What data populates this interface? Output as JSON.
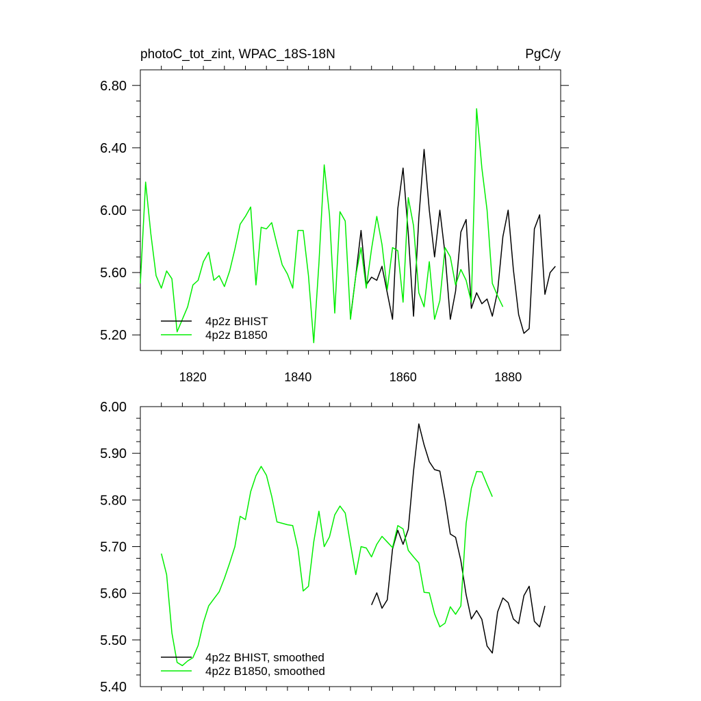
{
  "chart_data": [
    {
      "type": "line",
      "title_left": "photoC_tot_zint, WPAC_18S-18N",
      "title_right": "PgC/y",
      "xlim": [
        1810,
        1890
      ],
      "ylim": [
        5.1,
        6.9
      ],
      "x_ticks": [
        "1820",
        "1840",
        "1860",
        "1880"
      ],
      "y_ticks": [
        "5.20",
        "5.60",
        "6.00",
        "6.40",
        "6.80"
      ],
      "legend": "bottom-left",
      "series": [
        {
          "name": "4p2z BHIST",
          "color": "#000000",
          "x_start": 1850,
          "values": [
            5.31,
            5.58,
            5.87,
            5.52,
            5.57,
            5.55,
            5.64,
            5.47,
            5.3,
            6.01,
            6.27,
            5.85,
            5.32,
            5.95,
            6.39,
            6.0,
            5.7,
            6.0,
            5.72,
            5.3,
            5.48,
            5.86,
            5.94,
            5.37,
            5.47,
            5.4,
            5.43,
            5.32,
            5.48,
            5.83,
            6.0,
            5.62,
            5.33,
            5.21,
            5.24,
            5.88,
            5.97,
            5.46,
            5.6,
            5.64
          ]
        },
        {
          "name": "4p2z B1850",
          "color": "#00ee00",
          "x_start": 1810,
          "values": [
            5.53,
            6.18,
            5.85,
            5.58,
            5.5,
            5.61,
            5.56,
            5.22,
            5.3,
            5.38,
            5.52,
            5.55,
            5.67,
            5.73,
            5.55,
            5.58,
            5.51,
            5.61,
            5.75,
            5.91,
            5.96,
            6.02,
            5.52,
            5.89,
            5.88,
            5.92,
            5.78,
            5.65,
            5.59,
            5.5,
            5.87,
            5.87,
            5.58,
            5.15,
            5.66,
            6.29,
            5.97,
            5.34,
            5.99,
            5.93,
            5.3,
            5.58,
            5.76,
            5.5,
            5.75,
            5.96,
            5.78,
            5.49,
            5.76,
            5.74,
            5.41,
            6.08,
            5.9,
            5.47,
            5.38,
            5.67,
            5.3,
            5.42,
            5.76,
            5.7,
            5.52,
            5.62,
            5.55,
            5.41,
            6.65,
            6.27,
            6.0,
            5.53,
            5.45,
            5.38
          ]
        }
      ]
    },
    {
      "type": "line",
      "xlim": [
        1810,
        1890
      ],
      "ylim": [
        5.4,
        6.0
      ],
      "y_ticks": [
        "5.40",
        "5.50",
        "5.60",
        "5.70",
        "5.80",
        "5.90",
        "6.00"
      ],
      "legend": "bottom-left",
      "series": [
        {
          "name": "4p2z BHIST, smoothed",
          "color": "#000000",
          "x_start": 1854,
          "values": [
            5.575,
            5.601,
            5.568,
            5.586,
            5.695,
            5.735,
            5.705,
            5.737,
            5.862,
            5.963,
            5.918,
            5.882,
            5.865,
            5.862,
            5.8,
            5.727,
            5.72,
            5.67,
            5.597,
            5.545,
            5.563,
            5.544,
            5.487,
            5.472,
            5.56,
            5.59,
            5.58,
            5.545,
            5.535,
            5.595,
            5.615,
            5.54,
            5.528,
            5.573
          ]
        },
        {
          "name": "4p2z B1850, smoothed",
          "color": "#00ee00",
          "x_start": 1814,
          "values": [
            5.685,
            5.64,
            5.515,
            5.452,
            5.445,
            5.455,
            5.462,
            5.488,
            5.537,
            5.573,
            5.588,
            5.603,
            5.632,
            5.665,
            5.7,
            5.765,
            5.758,
            5.818,
            5.852,
            5.872,
            5.853,
            5.808,
            5.753,
            5.75,
            5.747,
            5.745,
            5.695,
            5.605,
            5.615,
            5.71,
            5.776,
            5.7,
            5.721,
            5.768,
            5.787,
            5.772,
            5.705,
            5.64,
            5.7,
            5.697,
            5.678,
            5.705,
            5.722,
            5.71,
            5.698,
            5.745,
            5.738,
            5.692,
            5.678,
            5.665,
            5.602,
            5.601,
            5.556,
            5.528,
            5.536,
            5.571,
            5.555,
            5.573,
            5.75,
            5.825,
            5.861,
            5.86,
            5.833,
            5.807
          ]
        }
      ]
    }
  ]
}
